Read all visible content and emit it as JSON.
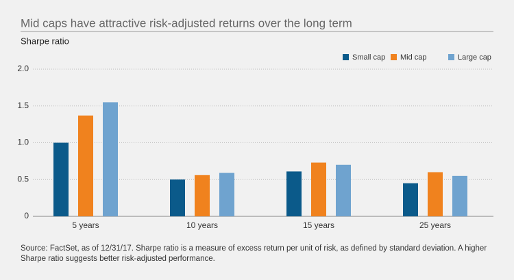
{
  "chart_data": {
    "type": "bar",
    "title": "Mid caps have attractive risk-adjusted returns over the long term",
    "y_label": "Sharpe ratio",
    "categories": [
      "5 years",
      "10 years",
      "15 years",
      "25 years"
    ],
    "series": [
      {
        "name": "Small cap",
        "color": "#0b5a8a",
        "values": [
          1.0,
          0.5,
          0.61,
          0.45
        ]
      },
      {
        "name": "Mid cap",
        "color": "#f0821e",
        "values": [
          1.37,
          0.56,
          0.73,
          0.6
        ]
      },
      {
        "name": "Large cap",
        "color": "#6fa3cf",
        "values": [
          1.55,
          0.59,
          0.7,
          0.55
        ]
      }
    ],
    "ylim": [
      0,
      2
    ],
    "yticks": [
      0,
      0.5,
      {
        "value": 1,
        "label": "1.0"
      },
      1.5,
      {
        "value": 2,
        "label": "2.0"
      }
    ],
    "grid": true,
    "legend": "top-right",
    "source": "Source: FactSet, as of 12/31/17. Sharpe ratio is a measure of excess return per unit of risk, as defined by standard deviation. A higher Sharpe ratio suggests better risk-adjusted performance."
  }
}
